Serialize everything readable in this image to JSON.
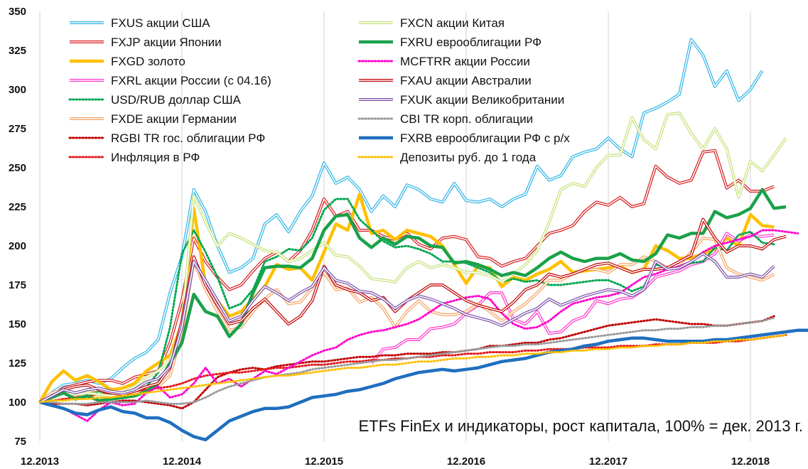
{
  "chart_data": {
    "type": "line",
    "caption": "ETFs FinEx и индикаторы, рост капитала, 100% = дек. 2013 г.",
    "x_ticks": [
      "12.2013",
      "12.2014",
      "12.2015",
      "12.2016",
      "12.2017",
      "12.2018"
    ],
    "x_range": [
      "2013-12",
      "2019-03"
    ],
    "y_ticks": [
      75,
      100,
      125,
      150,
      175,
      200,
      225,
      250,
      275,
      300,
      325,
      350
    ],
    "ylim": [
      75,
      350
    ],
    "grid": "vertical",
    "legend_position": "top (two columns)",
    "series": [
      {
        "name": "FXUS акции США",
        "color": "#2eb4e6",
        "style": "double",
        "start": "2013-12",
        "values": [
          100,
          106,
          111,
          112,
          114,
          112,
          115,
          122,
          128,
          132,
          140,
          170,
          193,
          236,
          222,
          200,
          183,
          186,
          192,
          214,
          220,
          209,
          222,
          232,
          253,
          240,
          244,
          236,
          222,
          232,
          225,
          239,
          236,
          230,
          228,
          240,
          229,
          228,
          230,
          225,
          230,
          233,
          251,
          242,
          245,
          257,
          260,
          262,
          269,
          262,
          257,
          285,
          288,
          292,
          297,
          332,
          322,
          302,
          312,
          293,
          300,
          312
        ]
      },
      {
        "name": "FXJP акции Японии",
        "color": "#d7191c",
        "style": "double",
        "start": "2013-12",
        "values": [
          100,
          104,
          109,
          111,
          113,
          114,
          114,
          112,
          116,
          118,
          120,
          138,
          165,
          205,
          190,
          180,
          172,
          175,
          184,
          192,
          196,
          190,
          197,
          210,
          230,
          219,
          222,
          210,
          210,
          206,
          204,
          208,
          201,
          198,
          205,
          206,
          204,
          193,
          192,
          187,
          190,
          192,
          200,
          208,
          210,
          213,
          222,
          228,
          226,
          231,
          225,
          227,
          251,
          244,
          240,
          242,
          260,
          261,
          237,
          242,
          235,
          235,
          238
        ]
      },
      {
        "name": "FXGD золото",
        "color": "#ffc000",
        "style": "thick",
        "start": "2013-12",
        "values": [
          100,
          113,
          120,
          114,
          117,
          113,
          108,
          109,
          112,
          120,
          125,
          130,
          150,
          224,
          175,
          165,
          155,
          158,
          166,
          174,
          188,
          185,
          186,
          178,
          196,
          214,
          210,
          233,
          208,
          210,
          204,
          210,
          208,
          206,
          200,
          188,
          176,
          187,
          186,
          174,
          180,
          178,
          182,
          185,
          190,
          183,
          184,
          185,
          186,
          187,
          183,
          185,
          200,
          197,
          192,
          192,
          195,
          198,
          205,
          200,
          220,
          213,
          212
        ]
      },
      {
        "name": "FXRL акции России (с 04.16)",
        "color": "#ff33cc",
        "style": "double",
        "start": "2016-04",
        "values": [
          125,
          134,
          135,
          140,
          140,
          147,
          148,
          150,
          157,
          162,
          170,
          170,
          153,
          150,
          158,
          144,
          145,
          152,
          155,
          165,
          163,
          166,
          167,
          172,
          180,
          182,
          184,
          188,
          190,
          195,
          208,
          203,
          207,
          206,
          207
        ]
      },
      {
        "name": "USD/RUB доллар США",
        "color": "#00a651",
        "style": "dotted",
        "start": "2013-12",
        "values": [
          100,
          104,
          108,
          105,
          106,
          107,
          105,
          104,
          106,
          110,
          119,
          148,
          195,
          210,
          196,
          180,
          160,
          163,
          172,
          190,
          193,
          198,
          197,
          205,
          223,
          230,
          230,
          217,
          210,
          203,
          199,
          200,
          198,
          195,
          190,
          190,
          189,
          186,
          183,
          177,
          179,
          177,
          178,
          175,
          175,
          176,
          177,
          178,
          178,
          175,
          171,
          174,
          188,
          186,
          187,
          189,
          190,
          199,
          197,
          207,
          209,
          202,
          201
        ]
      },
      {
        "name": "FXDE акции Германии",
        "color": "#f4a261",
        "style": "double",
        "start": "2013-12",
        "values": [
          100,
          106,
          108,
          104,
          107,
          108,
          106,
          104,
          106,
          108,
          110,
          117,
          145,
          190,
          172,
          158,
          146,
          148,
          158,
          166,
          172,
          163,
          164,
          173,
          183,
          172,
          173,
          164,
          167,
          160,
          148,
          158,
          165,
          158,
          156,
          156,
          158,
          163,
          158,
          152,
          158,
          163,
          170,
          178,
          178,
          182,
          185,
          185,
          183,
          188,
          188,
          193,
          190,
          186,
          188,
          196,
          205,
          204,
          186,
          182,
          180,
          178,
          182
        ]
      },
      {
        "name": "RGBI TR гос. облигации РФ",
        "color": "#c00000",
        "style": "dotted",
        "start": "2013-12",
        "values": [
          100,
          99,
          99,
          99,
          98,
          99,
          100,
          101,
          101,
          100,
          99,
          98,
          96,
          100,
          108,
          116,
          119,
          121,
          122,
          121,
          123,
          124,
          125,
          126,
          126,
          127,
          128,
          129,
          129,
          130,
          130,
          131,
          131,
          131,
          132,
          132,
          133,
          134,
          136,
          136,
          137,
          138,
          138,
          140,
          141,
          143,
          145,
          147,
          149,
          150,
          151,
          152,
          153,
          152,
          151,
          150,
          150,
          149,
          149,
          150,
          151,
          152,
          155
        ]
      },
      {
        "name": "Инфляция в РФ",
        "color": "#e41a1c",
        "style": "dotted",
        "start": "2013-12",
        "values": [
          100,
          101,
          102,
          103,
          104,
          105,
          106,
          106,
          107,
          108,
          109,
          110,
          112,
          115,
          117,
          118,
          119,
          119,
          120,
          121,
          122,
          122,
          123,
          124,
          124,
          125,
          126,
          126,
          127,
          127,
          128,
          128,
          129,
          129,
          130,
          130,
          131,
          131,
          132,
          132,
          132,
          133,
          133,
          134,
          134,
          134,
          135,
          135,
          135,
          136,
          136,
          136,
          137,
          137,
          137,
          138,
          138,
          138,
          139,
          139,
          140,
          141,
          142,
          143
        ]
      },
      {
        "name": "FXCN акции Китая",
        "color": "#c5e17a",
        "style": "double",
        "start": "2013-12",
        "values": [
          100,
          103,
          106,
          105,
          106,
          105,
          104,
          106,
          110,
          116,
          120,
          127,
          150,
          232,
          215,
          200,
          208,
          205,
          201,
          197,
          196,
          190,
          192,
          197,
          202,
          194,
          193,
          187,
          179,
          178,
          177,
          186,
          190,
          186,
          188,
          186,
          183,
          183,
          181,
          177,
          182,
          188,
          197,
          215,
          236,
          240,
          238,
          250,
          258,
          258,
          282,
          268,
          262,
          284,
          285,
          272,
          262,
          275,
          262,
          231,
          254,
          248,
          258,
          269
        ]
      },
      {
        "name": "FXRU еврооблигации РФ",
        "color": "#1aa14a",
        "style": "thick",
        "start": "2013-12",
        "values": [
          100,
          103,
          106,
          102,
          104,
          101,
          102,
          103,
          104,
          107,
          112,
          125,
          138,
          169,
          158,
          155,
          142,
          150,
          170,
          186,
          187,
          187,
          186,
          192,
          210,
          219,
          220,
          205,
          199,
          205,
          201,
          206,
          205,
          200,
          199,
          189,
          190,
          188,
          185,
          181,
          183,
          181,
          186,
          192,
          196,
          192,
          190,
          192,
          192,
          195,
          191,
          190,
          195,
          207,
          205,
          208,
          208,
          222,
          218,
          220,
          224,
          236,
          224,
          225
        ]
      },
      {
        "name": "MCFTRR акции России",
        "color": "#ff00cc",
        "style": "dotted",
        "start": "2013-12",
        "values": [
          100,
          98,
          96,
          92,
          88,
          95,
          100,
          98,
          99,
          106,
          110,
          103,
          105,
          112,
          122,
          112,
          115,
          110,
          115,
          120,
          118,
          122,
          126,
          130,
          133,
          135,
          140,
          143,
          145,
          146,
          148,
          150,
          153,
          158,
          163,
          165,
          167,
          168,
          166,
          157,
          150,
          147,
          148,
          152,
          158,
          163,
          165,
          167,
          168,
          170,
          175,
          180,
          182,
          185,
          187,
          190,
          196,
          200,
          202,
          204,
          206,
          210,
          210,
          209,
          208
        ]
      },
      {
        "name": "FXAU акции Австралии",
        "color": "#c00000",
        "style": "double",
        "start": "2013-12",
        "values": [
          100,
          104,
          108,
          110,
          111,
          108,
          106,
          105,
          107,
          110,
          112,
          122,
          152,
          193,
          175,
          162,
          150,
          152,
          160,
          166,
          158,
          150,
          155,
          165,
          187,
          175,
          172,
          170,
          165,
          167,
          158,
          165,
          170,
          175,
          175,
          170,
          165,
          162,
          160,
          158,
          164,
          172,
          175,
          182,
          180,
          182,
          185,
          188,
          189,
          186,
          183,
          185,
          185,
          186,
          190,
          194,
          217,
          205,
          196,
          200,
          200,
          198,
          204,
          206
        ]
      },
      {
        "name": "FXUK акции Великобритании",
        "color": "#7b4fa6",
        "style": "double",
        "start": "2013-12",
        "values": [
          100,
          104,
          108,
          106,
          108,
          109,
          107,
          106,
          108,
          113,
          115,
          123,
          148,
          190,
          178,
          165,
          152,
          155,
          165,
          174,
          170,
          165,
          170,
          174,
          186,
          178,
          176,
          171,
          170,
          166,
          160,
          165,
          168,
          166,
          163,
          160,
          156,
          154,
          152,
          149,
          153,
          157,
          160,
          166,
          162,
          165,
          168,
          170,
          172,
          171,
          168,
          172,
          190,
          185,
          186,
          190,
          195,
          190,
          180,
          180,
          182,
          180,
          187
        ]
      },
      {
        "name": "CBI TR корп. облигации",
        "color": "#999999",
        "style": "dotted",
        "start": "2013-12",
        "values": [
          100,
          100,
          99,
          99,
          99,
          100,
          100,
          100,
          100,
          101,
          100,
          99,
          99,
          100,
          103,
          107,
          110,
          112,
          114,
          116,
          117,
          118,
          119,
          121,
          122,
          123,
          124,
          125,
          126,
          127,
          127,
          128,
          129,
          130,
          131,
          132,
          133,
          134,
          135,
          136,
          136,
          137,
          137,
          138,
          139,
          140,
          141,
          142,
          143,
          144,
          145,
          146,
          146,
          147,
          147,
          148,
          148,
          149,
          149,
          150,
          151,
          152,
          154
        ]
      },
      {
        "name": "FXRB еврооблигации РФ с р/х",
        "color": "#1f6fbf",
        "style": "thick",
        "start": "2013-12",
        "values": [
          100,
          98,
          96,
          93,
          92,
          95,
          97,
          94,
          93,
          90,
          90,
          87,
          82,
          78,
          76,
          82,
          88,
          91,
          94,
          96,
          96,
          97,
          100,
          103,
          104,
          105,
          107,
          108,
          110,
          112,
          115,
          117,
          119,
          120,
          121,
          120,
          121,
          122,
          124,
          126,
          127,
          128,
          130,
          132,
          133,
          134,
          136,
          137,
          139,
          140,
          141,
          141,
          140,
          139,
          139,
          139,
          139,
          140,
          140,
          141,
          142,
          143,
          144,
          145,
          146,
          146
        ]
      },
      {
        "name": "Депозиты руб. до 1 года",
        "color": "#ffc000",
        "style": "dotted",
        "start": "2013-12",
        "values": [
          100,
          101,
          101,
          102,
          102,
          103,
          103,
          104,
          105,
          106,
          107,
          108,
          109,
          110,
          111,
          112,
          113,
          114,
          115,
          116,
          117,
          117,
          118,
          119,
          120,
          121,
          122,
          122,
          123,
          124,
          124,
          125,
          126,
          126,
          127,
          128,
          128,
          129,
          129,
          130,
          130,
          131,
          131,
          132,
          132,
          133,
          133,
          134,
          134,
          135,
          135,
          136,
          136,
          137,
          137,
          138,
          138,
          139,
          139,
          140,
          140,
          141,
          142,
          143
        ]
      }
    ]
  }
}
